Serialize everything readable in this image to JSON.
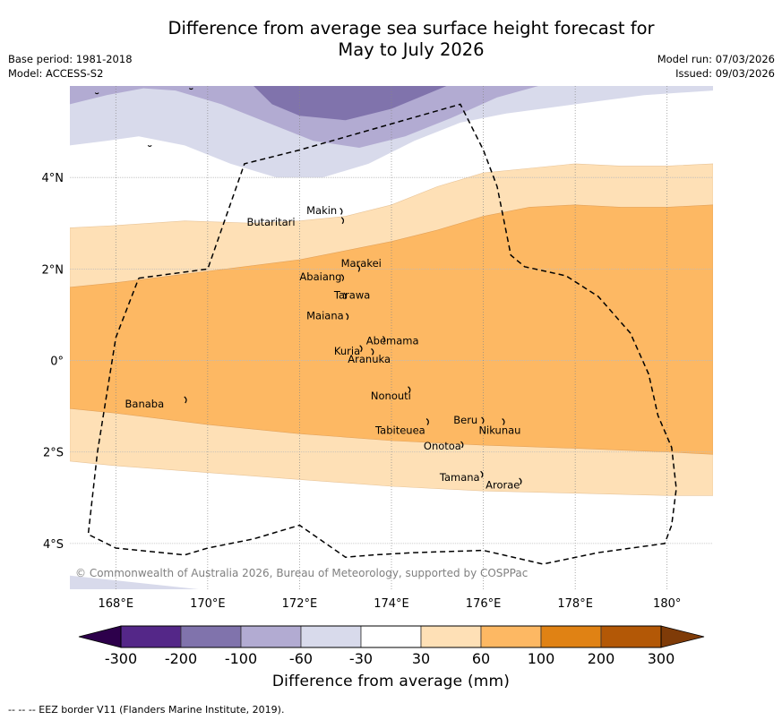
{
  "title": {
    "line1": "Difference from average sea surface height forecast for",
    "line2": "May to July 2026"
  },
  "meta_left": {
    "base_period": "Base period: 1981-2018",
    "model": "Model: ACCESS-S2"
  },
  "meta_right": {
    "model_run": "Model run: 07/03/2026",
    "issued": "Issued: 09/03/2026"
  },
  "copyright": "© Commonwealth of Australia 2026, Bureau of Meteorology, supported by COSPPac",
  "footnote": "--  --  -- EEZ border V11 (Flanders Marine Institute, 2019).",
  "colors": {
    "lt_m300": "#2d004b",
    "m300_m200": "#542788",
    "m200_m100": "#8073ac",
    "m100_m60": "#b2abd2",
    "m60_m30": "#d8daeb",
    "m30_30": "#ffffff",
    "p30_60": "#fee0b6",
    "p60_100": "#fdb863",
    "p100_200": "#e08214",
    "p200_300": "#b35806",
    "gt_300": "#7f3b08"
  },
  "chart_data": {
    "type": "heatmap",
    "title": "Difference from average sea surface height forecast for May to July 2026",
    "projection": "Plate Carree",
    "lon_range": [
      167,
      181
    ],
    "lat_range": [
      -5,
      6
    ],
    "x_ticks": [
      {
        "lon": 168,
        "label": "168°E"
      },
      {
        "lon": 170,
        "label": "170°E"
      },
      {
        "lon": 172,
        "label": "172°E"
      },
      {
        "lon": 174,
        "label": "174°E"
      },
      {
        "lon": 176,
        "label": "176°E"
      },
      {
        "lon": 178,
        "label": "178°E"
      },
      {
        "lon": 180,
        "label": "180°"
      }
    ],
    "y_ticks": [
      {
        "lat": 4,
        "label": "4°N"
      },
      {
        "lat": 2,
        "label": "2°N"
      },
      {
        "lat": 0,
        "label": "0°"
      },
      {
        "lat": -2,
        "label": "2°S"
      },
      {
        "lat": -4,
        "label": "4°S"
      }
    ],
    "grid": true,
    "colorbar": {
      "label": "Difference from average (mm)",
      "levels": [
        -300,
        -200,
        -100,
        -60,
        -30,
        30,
        60,
        100,
        200,
        300
      ],
      "tick_labels": [
        "-300",
        "-200",
        "-100",
        "-60",
        "-30",
        "30",
        "60",
        "100",
        "200",
        "300"
      ],
      "extend": "both",
      "placement": "bottom"
    },
    "contour_bands": [
      {
        "range": "-200 to -100",
        "color_key": "m200_m100",
        "boundary_lonlat": [
          [
            171.2,
            6.0
          ],
          [
            172.0,
            5.4
          ],
          [
            173.0,
            5.2
          ],
          [
            174.0,
            5.5
          ],
          [
            175.0,
            6.0
          ]
        ]
      },
      {
        "range": "-100 to -60 (upper edge)",
        "color_key": "m100_m60",
        "lower_edge": [
          [
            167,
            5.6
          ],
          [
            167.8,
            5.8
          ],
          [
            169.0,
            6.0
          ]
        ],
        "lower_edge_east": [
          [
            169.5,
            5.9
          ],
          [
            170.5,
            5.6
          ],
          [
            171.5,
            5.2
          ],
          [
            172.5,
            4.8
          ],
          [
            173.5,
            4.7
          ],
          [
            174.5,
            5.0
          ],
          [
            175.5,
            5.4
          ],
          [
            176.5,
            5.8
          ],
          [
            177.2,
            6.0
          ]
        ]
      },
      {
        "range": "-60 to -30",
        "color_key": "m60_m30",
        "lower_edge": [
          [
            167,
            4.7
          ],
          [
            167.8,
            4.8
          ],
          [
            168.5,
            4.9
          ],
          [
            169.5,
            4.7
          ],
          [
            170.5,
            4.3
          ],
          [
            171.5,
            4.0
          ],
          [
            172.5,
            4.0
          ],
          [
            173.5,
            4.3
          ],
          [
            174.5,
            4.8
          ],
          [
            175.5,
            5.2
          ],
          [
            176.5,
            5.4
          ],
          [
            178.0,
            5.6
          ],
          [
            179.5,
            5.8
          ],
          [
            181,
            5.9
          ]
        ]
      },
      {
        "range": "30 to 60",
        "color_key": "p30_60",
        "upper_edge": [
          [
            167,
            2.9
          ],
          [
            168,
            2.95
          ],
          [
            169.5,
            3.05
          ],
          [
            171,
            3.0
          ],
          [
            172,
            3.05
          ],
          [
            173,
            3.15
          ],
          [
            174,
            3.4
          ],
          [
            175,
            3.8
          ],
          [
            176,
            4.1
          ],
          [
            177,
            4.2
          ],
          [
            178,
            4.3
          ],
          [
            179,
            4.25
          ],
          [
            180,
            4.25
          ],
          [
            181,
            4.3
          ]
        ],
        "lower_edge": [
          [
            167,
            -2.2
          ],
          [
            168,
            -2.3
          ],
          [
            170,
            -2.45
          ],
          [
            172,
            -2.6
          ],
          [
            174,
            -2.75
          ],
          [
            176,
            -2.85
          ],
          [
            178,
            -2.9
          ],
          [
            180,
            -2.95
          ],
          [
            181,
            -2.95
          ]
        ]
      },
      {
        "range": "60 to 100",
        "color_key": "p60_100",
        "upper_edge": [
          [
            167,
            1.6
          ],
          [
            168,
            1.7
          ],
          [
            170,
            1.95
          ],
          [
            172,
            2.2
          ],
          [
            173,
            2.4
          ],
          [
            174,
            2.6
          ],
          [
            175,
            2.85
          ],
          [
            176,
            3.15
          ],
          [
            177,
            3.35
          ],
          [
            178,
            3.4
          ],
          [
            179,
            3.35
          ],
          [
            180,
            3.35
          ],
          [
            181,
            3.4
          ]
        ],
        "lower_edge": [
          [
            167,
            -1.05
          ],
          [
            168,
            -1.15
          ],
          [
            170,
            -1.4
          ],
          [
            172,
            -1.6
          ],
          [
            174,
            -1.75
          ],
          [
            176,
            -1.85
          ],
          [
            178,
            -1.92
          ],
          [
            180,
            -2.0
          ],
          [
            181,
            -2.05
          ]
        ]
      },
      {
        "range": "-60 to -30 (southwest corner)",
        "color_key": "m60_m30",
        "polygon": [
          [
            167,
            -4.6
          ],
          [
            169.0,
            -5.0
          ],
          [
            167,
            -5.0
          ]
        ]
      }
    ],
    "eez_border": [
      [
        168.5,
        1.8
      ],
      [
        170.0,
        2.0
      ],
      [
        170.8,
        4.3
      ],
      [
        172.0,
        4.6
      ],
      [
        175.5,
        5.6
      ],
      [
        176.0,
        4.6
      ],
      [
        176.3,
        3.8
      ],
      [
        176.6,
        2.3
      ],
      [
        176.9,
        2.05
      ],
      [
        177.8,
        1.85
      ],
      [
        178.5,
        1.4
      ],
      [
        179.2,
        0.6
      ],
      [
        179.6,
        -0.3
      ],
      [
        179.8,
        -1.2
      ],
      [
        180.1,
        -1.9
      ],
      [
        180.2,
        -2.8
      ],
      [
        180.1,
        -3.6
      ],
      [
        179.95,
        -4.0
      ],
      [
        178.5,
        -4.2
      ],
      [
        177.3,
        -4.45
      ],
      [
        176.0,
        -4.15
      ],
      [
        174.5,
        -4.2
      ],
      [
        173.6,
        -4.25
      ],
      [
        173.0,
        -4.3
      ],
      [
        172.0,
        -3.6
      ],
      [
        171.0,
        -3.9
      ],
      [
        170.0,
        -4.1
      ],
      [
        169.5,
        -4.25
      ],
      [
        168.0,
        -4.1
      ],
      [
        167.4,
        -3.8
      ],
      [
        167.6,
        -2.0
      ],
      [
        168.0,
        0.5
      ],
      [
        168.5,
        1.8
      ]
    ],
    "places": [
      {
        "name": "Makin",
        "lon": 172.92,
        "lat": 3.25,
        "label_lon": 172.15,
        "label_lat": 3.2
      },
      {
        "name": "Butaritari",
        "lon": 172.95,
        "lat": 3.05,
        "label_lon": 170.85,
        "label_lat": 2.95
      },
      {
        "name": "Marakei",
        "lon": 173.3,
        "lat": 2.0,
        "label_lon": 172.9,
        "label_lat": 2.05
      },
      {
        "name": "Abaiang",
        "lon": 172.95,
        "lat": 1.8,
        "label_lon": 172.0,
        "label_lat": 1.75
      },
      {
        "name": "Tarawa",
        "lon": 173.0,
        "lat": 1.4,
        "label_lon": 172.75,
        "label_lat": 1.35
      },
      {
        "name": "Maiana",
        "lon": 173.05,
        "lat": 0.95,
        "label_lon": 172.15,
        "label_lat": 0.9
      },
      {
        "name": "Abemama",
        "lon": 173.85,
        "lat": 0.45,
        "label_lon": 173.45,
        "label_lat": 0.35
      },
      {
        "name": "Kuria",
        "lon": 173.35,
        "lat": 0.25,
        "label_lon": 172.75,
        "label_lat": 0.13
      },
      {
        "name": "Aranuka",
        "lon": 173.6,
        "lat": 0.18,
        "label_lon": 173.05,
        "label_lat": -0.05
      },
      {
        "name": "Nonouti",
        "lon": 174.4,
        "lat": -0.65,
        "label_lon": 173.55,
        "label_lat": -0.85
      },
      {
        "name": "Tabiteuea",
        "lon": 174.8,
        "lat": -1.35,
        "label_lon": 173.65,
        "label_lat": -1.6
      },
      {
        "name": "Beru",
        "lon": 176.0,
        "lat": -1.32,
        "label_lon": 175.35,
        "label_lat": -1.38
      },
      {
        "name": "Nikunau",
        "lon": 176.45,
        "lat": -1.35,
        "label_lon": 175.9,
        "label_lat": -1.6
      },
      {
        "name": "Onotoa",
        "lon": 175.55,
        "lat": -1.85,
        "label_lon": 174.7,
        "label_lat": -1.95
      },
      {
        "name": "Tamana",
        "lon": 175.98,
        "lat": -2.5,
        "label_lon": 175.05,
        "label_lat": -2.63
      },
      {
        "name": "Arorae",
        "lon": 176.82,
        "lat": -2.65,
        "label_lon": 176.05,
        "label_lat": -2.8
      },
      {
        "name": "Banaba",
        "lon": 169.53,
        "lat": -0.87,
        "label_lon": 168.2,
        "label_lat": -1.03
      }
    ]
  }
}
